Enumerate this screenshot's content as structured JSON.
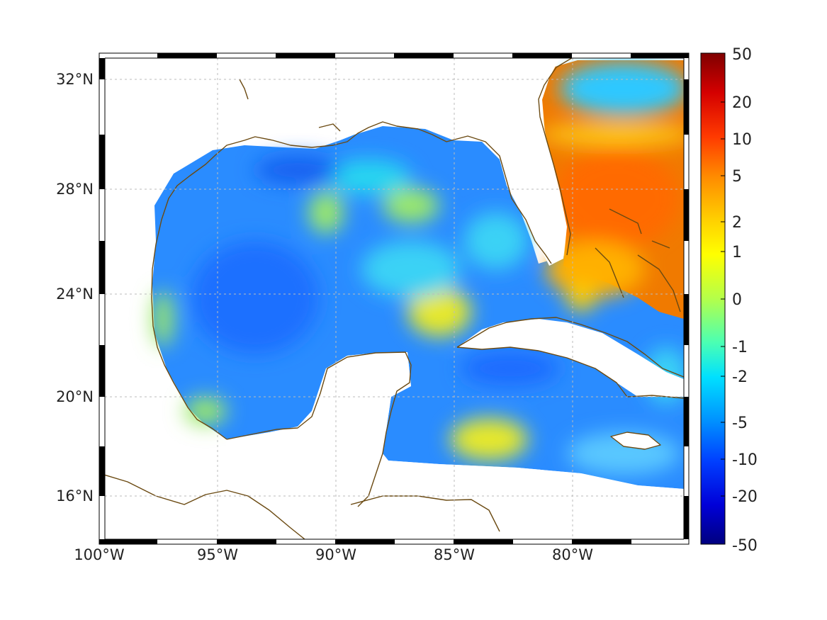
{
  "map": {
    "lon_labels": [
      "100°W",
      "95°W",
      "90°W",
      "85°W",
      "80°W"
    ],
    "lat_labels": [
      "32°N",
      "28°N",
      "24°N",
      "20°N",
      "16°N"
    ],
    "colors": {
      "coastline": "#6b4a12",
      "gulf_deep": "#1f78ff",
      "gulf_mid": "#35a6ff",
      "shelf": "#28d6f0",
      "warm_patch": "#e6e82a",
      "atlantic_hot": "#f07a00",
      "atlantic_front": "#ffd21a"
    }
  },
  "colorbar": {
    "labels": [
      "50",
      "20",
      "10",
      "5",
      "2",
      "1",
      "0",
      "-1",
      "-2",
      "-5",
      "-10",
      "-20",
      "-50"
    ],
    "colors": [
      "#7f0000",
      "#d40000",
      "#ff3a00",
      "#ff8a00",
      "#ffd000",
      "#ffff00",
      "#b4ff4a",
      "#4affb4",
      "#00e0ff",
      "#0090ff",
      "#0040ff",
      "#0000d8",
      "#00007f"
    ]
  }
}
